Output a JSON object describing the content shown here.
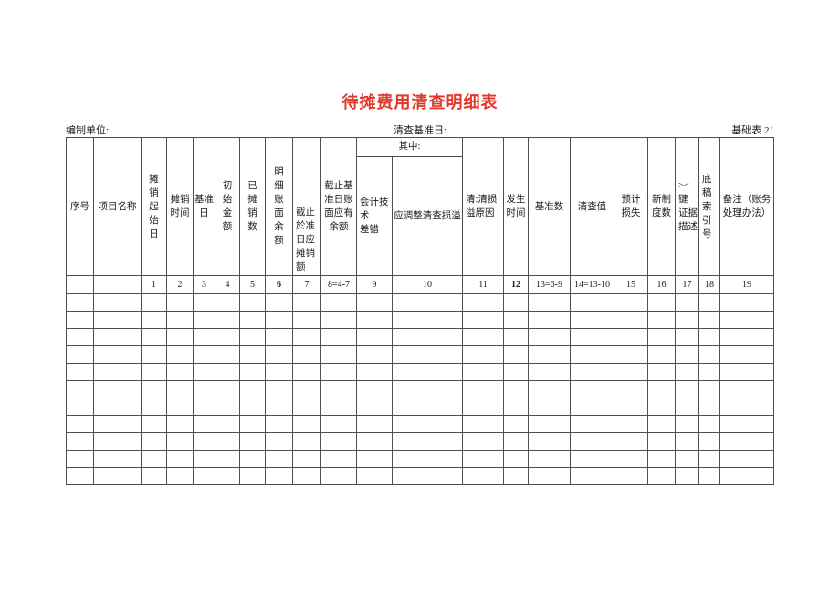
{
  "page": {
    "title": "待摊费用清查明细表",
    "title_color": "#e0392b",
    "prepared_by_label": "编制单位:",
    "inventory_base_date_label": "清查基准日:",
    "form_code": "基础表 21"
  },
  "table": {
    "among_which_label": "其中:",
    "empty_row_count": 11,
    "columns": [
      {
        "label": "序号",
        "num": ""
      },
      {
        "label": "项目名称",
        "num": ""
      },
      {
        "label": "摊\n销\n起\n始\n日",
        "num": "1"
      },
      {
        "label": "摊销\n时间",
        "num": "2"
      },
      {
        "label": "基准\n日",
        "num": "3"
      },
      {
        "label": "初\n始\n金\n额",
        "num": "4"
      },
      {
        "label": "已\n摊\n销\n数",
        "num": "5"
      },
      {
        "label": "明\n细\n账\n面\n余\n额",
        "num": "6"
      },
      {
        "label": "截止\n於准\n日应\n摊销\n额",
        "num": "7"
      },
      {
        "label": "截止基\n准日账\n面应有\n余额",
        "num": "8=4-7"
      },
      {
        "label": "会计技\n术\n差错",
        "num": "9"
      },
      {
        "label": "应调整清查损溢",
        "num": "10"
      },
      {
        "label": "清:清损\n溢原因",
        "num": "11"
      },
      {
        "label": "发生\n时间",
        "num": "12"
      },
      {
        "label": "基准数",
        "num": "13=6-9"
      },
      {
        "label": "清查值",
        "num": "14=13-10"
      },
      {
        "label": "预计\n损失",
        "num": "15"
      },
      {
        "label": "新制\n度数",
        "num": "16"
      },
      {
        "label": "><键\n证据\n描述",
        "num": "17"
      },
      {
        "label": "底稿\n索引\n号",
        "num": "18"
      },
      {
        "label": "备注（账务\n处理办法）",
        "num": "19"
      }
    ]
  }
}
